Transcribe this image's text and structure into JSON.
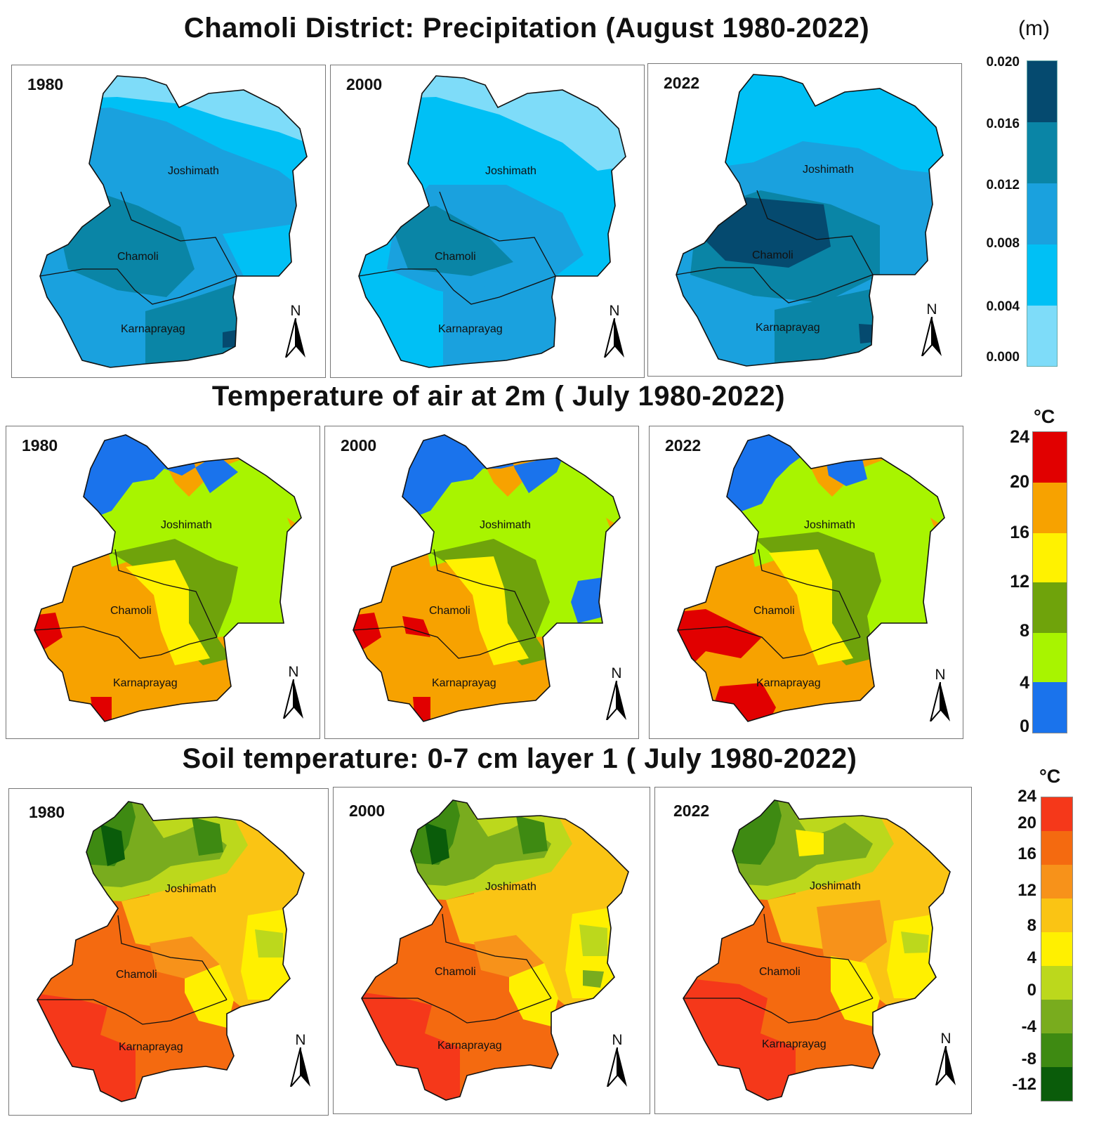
{
  "sections": [
    {
      "title": "Chamoli District: Precipitation (August 1980-2022)",
      "years": [
        "1980",
        "2000",
        "2022"
      ],
      "legend": {
        "unit": "(m)",
        "ticks": [
          "0.020",
          "0.016",
          "0.012",
          "0.008",
          "0.004",
          "0.000"
        ],
        "colors": [
          "#054a6f",
          "#0a85a6",
          "#1aa1de",
          "#00c0f5",
          "#7edcf9"
        ]
      }
    },
    {
      "title": "Temperature of air at 2m ( July 1980-2022)",
      "years": [
        "1980",
        "2000",
        "2022"
      ],
      "legend": {
        "unit": "°C",
        "ticks": [
          "24",
          "20",
          "16",
          "12",
          "8",
          "4",
          "0"
        ],
        "colors": [
          "#e10000",
          "#f7a200",
          "#fff200",
          "#6fa30b",
          "#a8f400",
          "#1a73ec"
        ]
      }
    },
    {
      "title": "Soil temperature: 0-7 cm layer 1 ( July 1980-2022)",
      "years": [
        "1980",
        "2000",
        "2022"
      ],
      "legend": {
        "unit": "°C",
        "ticks": [
          "24",
          "20",
          "16",
          "12",
          "8",
          "4",
          "0",
          "-4",
          "-8",
          "-12"
        ],
        "colors": [
          "#f5381a",
          "#f46a10",
          "#f7921a",
          "#fac414",
          "#fff000",
          "#bcd81c",
          "#79ac1e",
          "#3e8a12",
          "#0a5c0a"
        ]
      }
    }
  ],
  "places": {
    "north": "Joshimath",
    "mid": "Chamoli",
    "south": "Karnaprayag"
  },
  "north_arrow": "N"
}
